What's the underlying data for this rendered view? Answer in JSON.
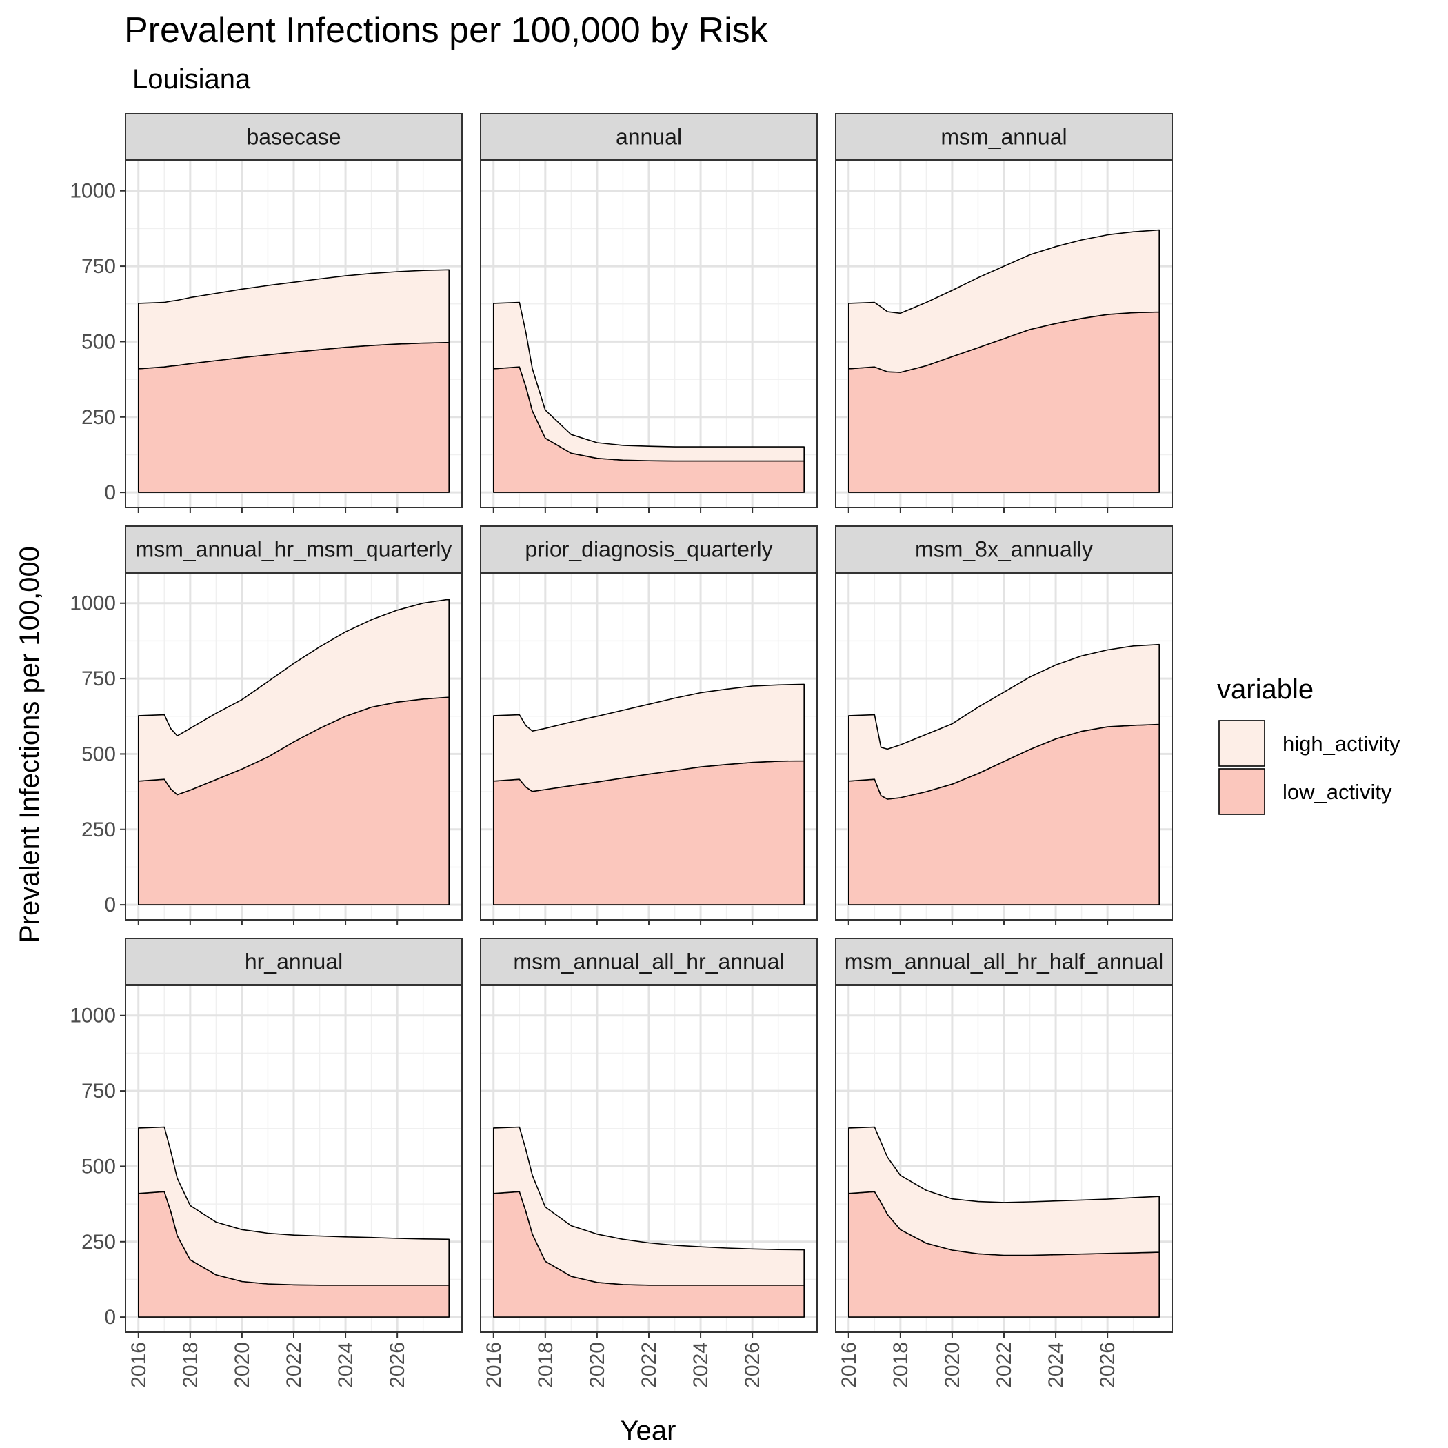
{
  "chart_data": {
    "type": "area",
    "stacked": true,
    "title": "Prevalent Infections per 100,000 by Risk",
    "subtitle": "Louisiana",
    "xlabel": "Year",
    "ylabel": "Prevalent Infections per 100,000",
    "xlim": [
      2015.5,
      2028.5
    ],
    "ylim": [
      -50,
      1100
    ],
    "x_ticks": [
      2016,
      2018,
      2020,
      2022,
      2024,
      2026
    ],
    "y_ticks": [
      0,
      250,
      500,
      750,
      1000
    ],
    "grid": true,
    "legend": {
      "title": "variable",
      "position": "right",
      "entries": [
        {
          "name": "high_activity",
          "color": "#fdeee7"
        },
        {
          "name": "low_activity",
          "color": "#fbc7bd"
        }
      ]
    },
    "x": [
      2016,
      2017,
      2017.25,
      2017.5,
      2018,
      2019,
      2020,
      2021,
      2022,
      2023,
      2024,
      2025,
      2026,
      2027,
      2028
    ],
    "panels": [
      {
        "label": "basecase",
        "series": [
          {
            "name": "low_activity",
            "values": [
              410,
              416,
              419,
              421,
              427,
              437,
              447,
              456,
              465,
              473,
              481,
              487,
              492,
              495,
              497
            ]
          },
          {
            "name": "high_activity",
            "values": [
              217,
              214,
              215,
              216,
              219,
              223,
              227,
              230,
              232,
              235,
              237,
              239,
              240,
              241,
              241
            ]
          }
        ]
      },
      {
        "label": "annual",
        "series": [
          {
            "name": "low_activity",
            "values": [
              410,
              416,
              350,
              270,
              180,
              130,
              113,
              107,
              105,
              104,
              104,
              104,
              104,
              104,
              104
            ]
          },
          {
            "name": "high_activity",
            "values": [
              217,
              214,
              180,
              140,
              93,
              62,
              52,
              49,
              48,
              47,
              47,
              47,
              47,
              47,
              47
            ]
          }
        ]
      },
      {
        "label": "msm_annual",
        "series": [
          {
            "name": "low_activity",
            "values": [
              410,
              416,
              408,
              400,
              398,
              420,
              450,
              480,
              510,
              540,
              560,
              577,
              590,
              596,
              598
            ]
          },
          {
            "name": "high_activity",
            "values": [
              217,
              214,
              207,
              199,
              196,
              210,
              220,
              232,
              240,
              248,
              255,
              260,
              264,
              268,
              272
            ]
          }
        ]
      },
      {
        "label": "msm_annual_hr_msm_quarterly",
        "series": [
          {
            "name": "low_activity",
            "values": [
              410,
              416,
              384,
              365,
              380,
              415,
              450,
              490,
              540,
              585,
              625,
              655,
              672,
              682,
              688
            ]
          },
          {
            "name": "high_activity",
            "values": [
              217,
              214,
              200,
              195,
              205,
              220,
              230,
              250,
              260,
              270,
              280,
              290,
              305,
              318,
              325
            ]
          }
        ]
      },
      {
        "label": "prior_diagnosis_quarterly",
        "series": [
          {
            "name": "low_activity",
            "values": [
              410,
              416,
              390,
              376,
              382,
              395,
              407,
              420,
              433,
              445,
              457,
              465,
              472,
              476,
              477
            ]
          },
          {
            "name": "high_activity",
            "values": [
              217,
              214,
              204,
              200,
              203,
              211,
              218,
              225,
              232,
              240,
              246,
              250,
              253,
              253,
              254
            ]
          }
        ]
      },
      {
        "label": "msm_8x_annually",
        "series": [
          {
            "name": "low_activity",
            "values": [
              410,
              416,
              362,
              350,
              355,
              375,
              400,
              435,
              475,
              515,
              550,
              575,
              590,
              595,
              598
            ]
          },
          {
            "name": "high_activity",
            "values": [
              217,
              214,
              160,
              166,
              175,
              190,
              200,
              220,
              230,
              240,
              245,
              250,
              255,
              263,
              265
            ]
          }
        ]
      },
      {
        "label": "hr_annual",
        "series": [
          {
            "name": "low_activity",
            "values": [
              410,
              416,
              350,
              270,
              190,
              140,
              118,
              110,
              107,
              106,
              106,
              106,
              106,
              106,
              106
            ]
          },
          {
            "name": "high_activity",
            "values": [
              217,
              214,
              200,
              190,
              180,
              175,
              172,
              168,
              165,
              163,
              160,
              158,
              155,
              153,
              152
            ]
          }
        ]
      },
      {
        "label": "msm_annual_all_hr_annual",
        "series": [
          {
            "name": "low_activity",
            "values": [
              410,
              416,
              350,
              275,
              185,
              135,
              115,
              108,
              106,
              106,
              106,
              106,
              106,
              106,
              106
            ]
          },
          {
            "name": "high_activity",
            "values": [
              217,
              214,
              205,
              195,
              180,
              168,
              160,
              150,
              140,
              132,
              127,
              123,
              120,
              118,
              117
            ]
          }
        ]
      },
      {
        "label": "msm_annual_all_hr_half_annual",
        "series": [
          {
            "name": "low_activity",
            "values": [
              410,
              416,
              380,
              340,
              290,
              245,
              222,
              210,
              205,
              205,
              207,
              209,
              211,
              213,
              215
            ]
          },
          {
            "name": "high_activity",
            "values": [
              217,
              214,
              200,
              190,
              180,
              175,
              170,
              173,
              175,
              177,
              178,
              179,
              180,
              183,
              185
            ]
          }
        ]
      }
    ]
  }
}
